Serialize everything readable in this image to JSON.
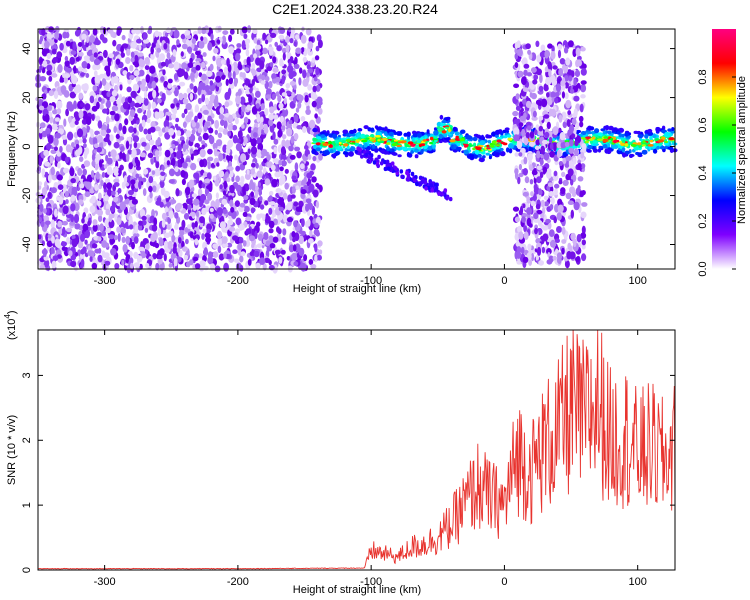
{
  "title": "C2E1.2024.338.23.20.R24",
  "chart_data": [
    {
      "type": "heatmap",
      "title": "C2E1.2024.338.23.20.R24",
      "xlabel": "Height of straight line (km)",
      "ylabel": "Frequency (Hz)",
      "xlim": [
        -350,
        128
      ],
      "ylim": [
        -50,
        48
      ],
      "xticks": [
        -300,
        -200,
        -100,
        0,
        100
      ],
      "yticks": [
        -40,
        -20,
        0,
        20,
        40
      ],
      "colorbar": {
        "label": "Normalized spectral amplitude",
        "range": [
          0,
          1
        ],
        "ticks": [
          "0.0",
          "0.2",
          "0.4",
          "0.6",
          "0.8"
        ],
        "colormap": [
          "#ffffff",
          "#7f00ff",
          "#0000ff",
          "#00ffff",
          "#00ff00",
          "#ffff00",
          "#ff0000",
          "#ff0080"
        ]
      },
      "regions": [
        {
          "kind": "broadband noise",
          "x_range": [
            -350,
            -138
          ],
          "freq_range": [
            -50,
            48
          ],
          "amplitude": 0.15
        },
        {
          "kind": "narrow band",
          "x_range": [
            -143,
            128
          ],
          "center_freq_hz": 2,
          "band_halfwidth_hz": 5,
          "peak_amplitude": 0.95
        },
        {
          "kind": "broadband noise",
          "x_range": [
            8,
            60
          ],
          "freq_range": [
            -48,
            42
          ],
          "amplitude": 0.15
        }
      ]
    },
    {
      "type": "line",
      "xlabel": "Height of straight line (km)",
      "ylabel": "SNR (10 * v/v)",
      "y_multiplier": "(x10",
      "y_multiplier_exp": "4",
      "xlim": [
        -350,
        128
      ],
      "ylim": [
        0,
        3.7
      ],
      "xticks": [
        -300,
        -200,
        -100,
        0,
        100
      ],
      "yticks": [
        0,
        1,
        2,
        3
      ],
      "series": [
        {
          "color": "#e8332e",
          "x": [
            -350,
            -200,
            -105,
            -100,
            -90,
            -80,
            -70,
            -60,
            -50,
            -40,
            -30,
            -20,
            -10,
            0,
            10,
            20,
            30,
            40,
            50,
            60,
            70,
            80,
            90,
            100,
            110,
            120,
            128
          ],
          "y": [
            0.02,
            0.02,
            0.03,
            0.3,
            0.25,
            0.2,
            0.35,
            0.4,
            0.5,
            0.7,
            1.0,
            1.3,
            1.1,
            1.0,
            1.8,
            1.5,
            1.9,
            2.1,
            2.5,
            2.3,
            2.6,
            2.0,
            2.1,
            1.8,
            1.9,
            1.7,
            1.9
          ]
        }
      ]
    }
  ]
}
